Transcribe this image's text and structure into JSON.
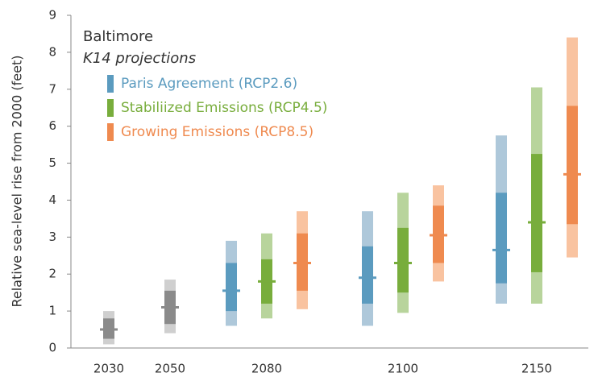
{
  "chart_data": {
    "type": "range",
    "title": "Baltimore",
    "subtitle": "K14 projections",
    "ylabel": "Relative sea-level rise from 2000 (feet)",
    "categories": [
      "2030",
      "2050",
      "2080",
      "2100",
      "2150"
    ],
    "ylim": [
      0,
      9
    ],
    "yticks": [
      0,
      1,
      2,
      3,
      4,
      5,
      6,
      7,
      8,
      9
    ],
    "series": [
      {
        "color": "#8a8a8a",
        "light_color": "#cfcfcf",
        "low": [
          0.1,
          0.4,
          null,
          null,
          null
        ],
        "q_low": [
          0.25,
          0.65,
          null,
          null,
          null
        ],
        "median": [
          0.5,
          1.1,
          null,
          null,
          null
        ],
        "q_high": [
          0.8,
          1.55,
          null,
          null,
          null
        ],
        "high": [
          1.0,
          1.85,
          null,
          null,
          null
        ]
      },
      {
        "name": "Paris Agreement (RCP2.6)",
        "color": "#5b9bbf",
        "light_color": "#aec8da",
        "low": [
          null,
          null,
          0.6,
          0.6,
          1.2
        ],
        "q_low": [
          null,
          null,
          1.0,
          1.2,
          1.75
        ],
        "median": [
          null,
          null,
          1.55,
          1.9,
          2.65
        ],
        "q_high": [
          null,
          null,
          2.3,
          2.75,
          4.2
        ],
        "high": [
          null,
          null,
          2.9,
          3.7,
          5.75
        ]
      },
      {
        "name": "Stabiliized Emissions (RCP4.5)",
        "color": "#78ad3c",
        "light_color": "#b8d49c",
        "low": [
          null,
          null,
          0.8,
          0.95,
          1.2
        ],
        "q_low": [
          null,
          null,
          1.2,
          1.5,
          2.05
        ],
        "median": [
          null,
          null,
          1.8,
          2.3,
          3.4
        ],
        "q_high": [
          null,
          null,
          2.4,
          3.25,
          5.25
        ],
        "high": [
          null,
          null,
          3.1,
          4.2,
          7.05
        ]
      },
      {
        "name": "Growing Emissions (RCP8.5)",
        "color": "#ef8a4f",
        "light_color": "#f9c3a0",
        "low": [
          null,
          null,
          1.05,
          1.8,
          2.45
        ],
        "q_low": [
          null,
          null,
          1.55,
          2.3,
          3.35
        ],
        "median": [
          null,
          null,
          2.3,
          3.05,
          4.7
        ],
        "q_high": [
          null,
          null,
          3.1,
          3.85,
          6.55
        ],
        "high": [
          null,
          null,
          3.7,
          4.4,
          8.4
        ]
      }
    ]
  }
}
